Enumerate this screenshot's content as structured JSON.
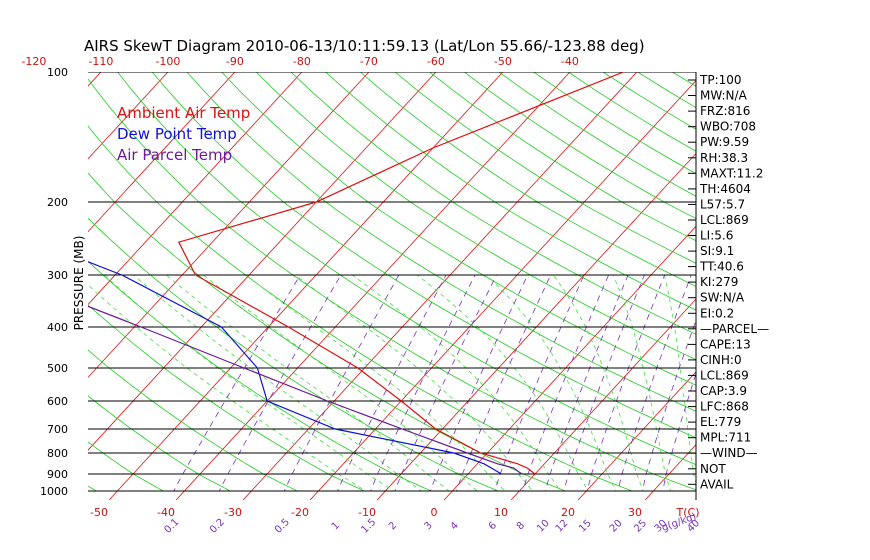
{
  "chart_data": {
    "type": "skewt",
    "title": "AIRS SkewT Diagram 2010-06-13/10:11:59.13 (Lat/Lon 55.66/-123.88 deg)",
    "ylabel": "PRESSURE (MB)",
    "top_temp_ticks": [
      "-120",
      "-110",
      "-100",
      "-90",
      "-80",
      "-70",
      "-60",
      "-50",
      "-40"
    ],
    "bottom_temp_ticks": [
      "-50",
      "-40",
      "-30",
      "-20",
      "-10",
      "0",
      "10",
      "20",
      "30"
    ],
    "temp_axis_label": "T(C)",
    "mixing_ratio_ticks": [
      "0.1",
      "0.2",
      "0.5",
      "1",
      "1.5",
      "2",
      "3",
      "4",
      "6",
      "8",
      "10",
      "12",
      "15",
      "20",
      "25",
      "30",
      "40"
    ],
    "mixing_ratio_label": "g(g/kg)",
    "pressure_levels": [
      100,
      200,
      300,
      400,
      500,
      600,
      700,
      800,
      900,
      1000
    ],
    "legend": [
      {
        "name": "Ambient Air Temp",
        "color": "#dd1111"
      },
      {
        "name": "Dew Point Temp",
        "color": "#1111dd"
      },
      {
        "name": "Air Parcel Temp",
        "color": "#6a1a9a"
      }
    ],
    "series": [
      {
        "name": "Ambient Air Temp",
        "color": "#dd1111",
        "points": [
          [
            100,
            -32
          ],
          [
            150,
            -50
          ],
          [
            200,
            -60
          ],
          [
            250,
            -75
          ],
          [
            300,
            -68
          ],
          [
            400,
            -47
          ],
          [
            500,
            -31
          ],
          [
            600,
            -20
          ],
          [
            700,
            -11
          ],
          [
            800,
            -1
          ],
          [
            850,
            6
          ],
          [
            870,
            8
          ],
          [
            900,
            10
          ]
        ]
      },
      {
        "name": "Dew Point Temp",
        "color": "#1111dd",
        "points": [
          [
            100,
            -112
          ],
          [
            150,
            -118
          ],
          [
            200,
            -100
          ],
          [
            250,
            -96
          ],
          [
            300,
            -79
          ],
          [
            400,
            -57
          ],
          [
            500,
            -46
          ],
          [
            600,
            -40
          ],
          [
            700,
            -26
          ],
          [
            800,
            -5
          ],
          [
            850,
            1
          ],
          [
            900,
            5
          ]
        ]
      },
      {
        "name": "Air Parcel Temp",
        "color": "#6a1a9a",
        "points": [
          [
            100,
            -157
          ],
          [
            200,
            -124
          ],
          [
            300,
            -96
          ],
          [
            400,
            -69
          ],
          [
            500,
            -48
          ],
          [
            600,
            -31
          ],
          [
            700,
            -16
          ],
          [
            800,
            -3
          ],
          [
            850,
            3
          ],
          [
            870,
            6
          ],
          [
            900,
            8
          ]
        ]
      }
    ],
    "indices": [
      "TP:100",
      "MW:N/A",
      "FRZ:816",
      "WBO:708",
      "PW:9.59",
      "RH:38.3",
      "MAXT:11.2",
      "TH:4604",
      "L57:5.7",
      "LCL:869",
      "LI:5.6",
      "SI:9.1",
      "TT:40.6",
      "KI:279",
      "SW:N/A",
      "EI:0.2",
      "—PARCEL—",
      "CAPE:13",
      "CINH:0",
      "LCL:869",
      "CAP:3.9",
      "LFC:868",
      "EL:779",
      "MPL:711",
      "—WIND—",
      "NOT",
      "AVAIL"
    ],
    "colors": {
      "isotherm": "#dd1111",
      "dry_adiabat": "#22cc22",
      "moist_adiabat": "#44dd44",
      "mixing_ratio": "#7733bb",
      "pressure_line": "#000000",
      "temp_tick_labels": "#cc1111",
      "mixing_tick_labels": "#7733bb"
    }
  }
}
